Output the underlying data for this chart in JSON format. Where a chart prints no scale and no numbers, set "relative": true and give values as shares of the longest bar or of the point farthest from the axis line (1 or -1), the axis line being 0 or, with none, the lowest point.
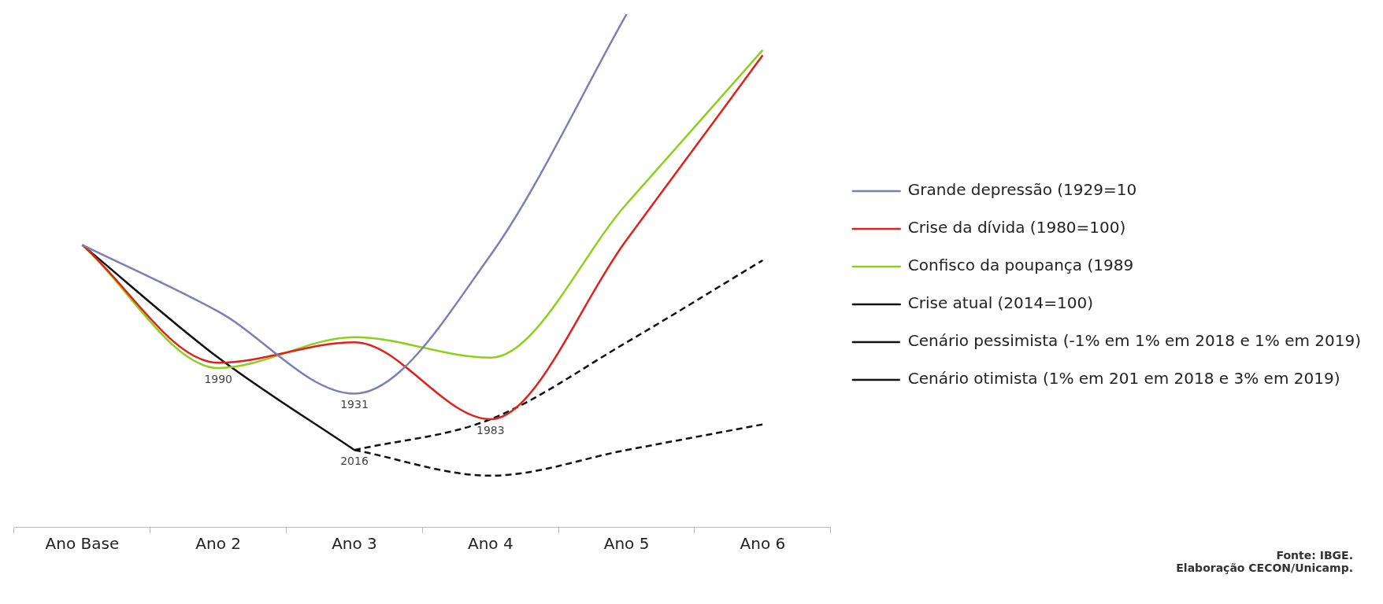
{
  "chart_data": {
    "type": "line",
    "relative": true,
    "marker": "none",
    "legend": "right",
    "categories": [
      "Ano Base",
      "Ano 2",
      "Ano 3",
      "Ano 4",
      "Ano 5",
      "Ano 6"
    ],
    "series": [
      {
        "name": "Grande depressão (1929=10",
        "color": "#7b7fb5",
        "values": [
          0.55,
          0.42,
          0.26,
          0.53,
          1.0,
          null
        ]
      },
      {
        "name": "Crise da dívida (1980=100)",
        "color": "#e0201b",
        "values": [
          0.55,
          0.32,
          0.36,
          0.21,
          0.56,
          0.92
        ]
      },
      {
        "name": "Confisco da poupança (1989",
        "color": "#8fcf1c",
        "values": [
          0.55,
          0.31,
          0.37,
          0.33,
          0.63,
          0.93
        ]
      },
      {
        "name": "Crise atual (2014=100)",
        "color": "#111111",
        "values": [
          0.55,
          0.33,
          0.15,
          null,
          null,
          null
        ]
      },
      {
        "name": "Cenário pessimista (-1% em 1% em 2018 e 1% em 2019)",
        "color": "#111111",
        "line_style": "dashed",
        "values": [
          null,
          null,
          0.15,
          0.21,
          0.36,
          0.52
        ]
      },
      {
        "name": "Cenário otimista (1% em 201 em 2018 e 3% em 2019)",
        "color": "#111111",
        "line_style": "dashed",
        "values": [
          null,
          null,
          0.15,
          0.1,
          0.15,
          0.2
        ]
      }
    ],
    "annotations": [
      {
        "text": "1990",
        "x": "Ano 2",
        "y": 0.31
      },
      {
        "text": "1931",
        "x": "Ano 3",
        "y": 0.26
      },
      {
        "text": "1983",
        "x": "Ano 4",
        "y": 0.21
      },
      {
        "text": "2016",
        "x": "Ano 3",
        "y": 0.15
      },
      "Fonte: IBGE.",
      "Elaboração CECON/Unicamp."
    ]
  }
}
